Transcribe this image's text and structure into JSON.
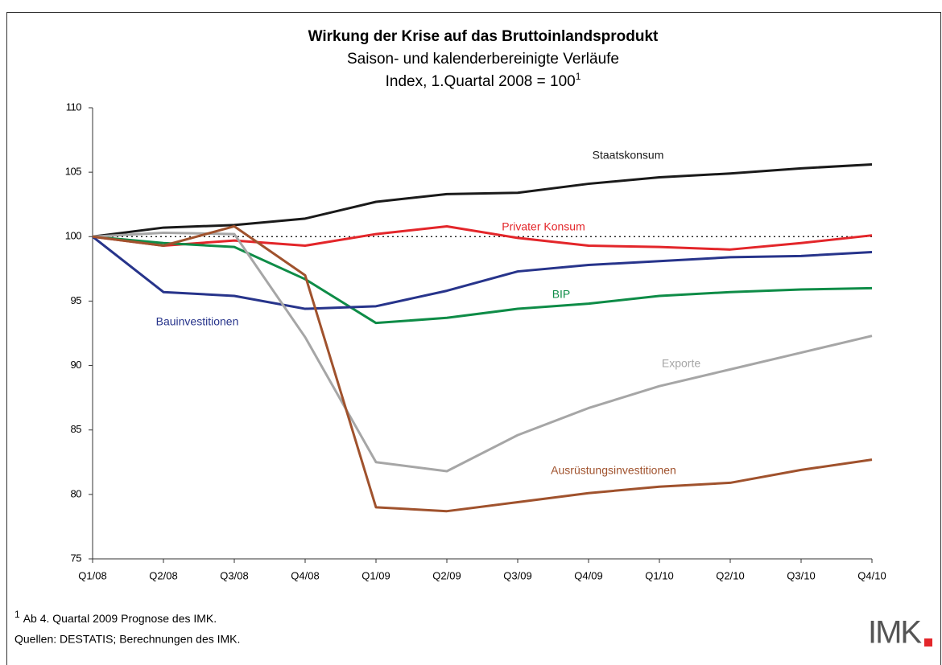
{
  "chart_data": {
    "type": "line",
    "title": "Wirkung der Krise auf das Bruttoinlandsprodukt",
    "subtitle": "Saison- und kalenderbereinigte Verläufe",
    "subtitle2": "Index, 1.Quartal 2008 = 100",
    "footnote_mark": "1",
    "footnote": "Ab 4. Quartal 2009 Prognose des IMK.",
    "source": "Quellen: DESTATIS; Berechnungen des IMK.",
    "logo": "IMK",
    "categories": [
      "Q1/08",
      "Q2/08",
      "Q3/08",
      "Q4/08",
      "Q1/09",
      "Q2/09",
      "Q3/09",
      "Q4/09",
      "Q1/10",
      "Q2/10",
      "Q3/10",
      "Q4/10"
    ],
    "ylim": [
      75,
      110
    ],
    "yticks": [
      75,
      80,
      85,
      90,
      95,
      100,
      105,
      110
    ],
    "reference_line": 100,
    "series": [
      {
        "name": "Staatskonsum",
        "color": "#1a1a1a",
        "values": [
          100,
          100.7,
          100.9,
          101.4,
          102.7,
          103.3,
          103.4,
          104.1,
          104.6,
          104.9,
          105.3,
          105.6
        ]
      },
      {
        "name": "Privater Konsum",
        "color": "#e3262a",
        "values": [
          100,
          99.3,
          99.7,
          99.3,
          100.2,
          100.8,
          99.9,
          99.3,
          99.2,
          99.0,
          99.5,
          100.1
        ]
      },
      {
        "name": "BIP",
        "color": "#0e8c47",
        "values": [
          100,
          99.5,
          99.2,
          96.7,
          93.3,
          93.7,
          94.4,
          94.8,
          95.4,
          95.7,
          95.9,
          96.0
        ]
      },
      {
        "name": "Bauinvestitionen",
        "color": "#27348b",
        "values": [
          100,
          95.7,
          95.4,
          94.4,
          94.6,
          95.8,
          97.3,
          97.8,
          98.1,
          98.4,
          98.5,
          98.8
        ]
      },
      {
        "name": "Exporte",
        "color": "#a6a6a6",
        "values": [
          100,
          100.3,
          100.2,
          92.2,
          82.5,
          81.8,
          84.6,
          86.7,
          88.4,
          89.7,
          91.0,
          92.3
        ]
      },
      {
        "name": "Ausrüstungsinvestitionen",
        "color": "#a0522d",
        "values": [
          100,
          99.3,
          100.8,
          97.0,
          79.0,
          78.7,
          79.4,
          80.1,
          80.6,
          80.9,
          81.9,
          82.7
        ]
      }
    ]
  }
}
